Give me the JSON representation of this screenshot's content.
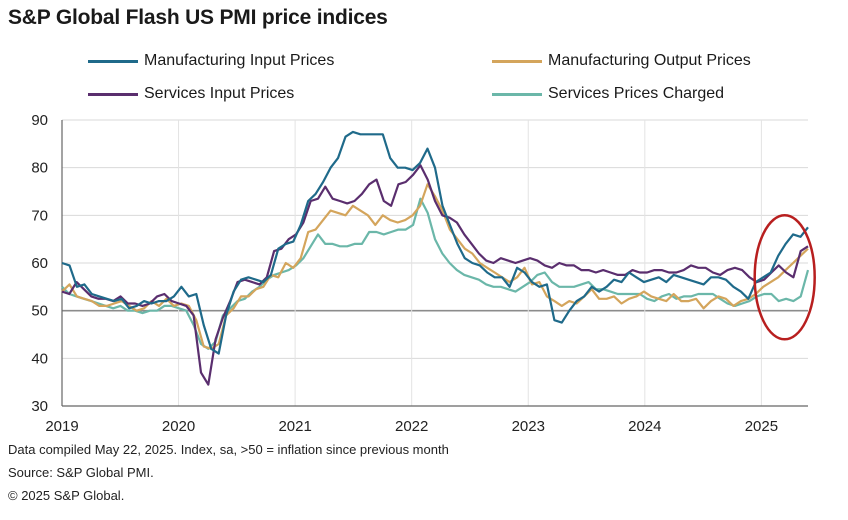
{
  "chart_data": {
    "type": "line",
    "title": "S&P Global Flash US PMI price indices",
    "ylim": [
      30,
      90
    ],
    "yticks": [
      30,
      40,
      50,
      60,
      70,
      80,
      90
    ],
    "xticks": [
      "2019",
      "2020",
      "2021",
      "2022",
      "2023",
      "2024",
      "2025"
    ],
    "x_start": 2019.0,
    "x_end": 2025.4,
    "reference_line": 50,
    "series": [
      {
        "name": "Manufacturing Input Prices",
        "color": "#1f6a8a",
        "values": [
          60,
          59.5,
          55,
          55.5,
          53.5,
          53,
          52.5,
          52,
          52.5,
          50.5,
          51,
          52,
          51.5,
          52,
          52,
          53,
          55,
          53,
          53.5,
          47,
          42,
          41,
          49,
          54,
          56.5,
          57,
          56.5,
          56,
          57.5,
          63,
          64,
          64.5,
          68,
          73,
          74.5,
          77,
          80,
          82,
          86.5,
          87.5,
          87,
          87,
          87,
          87,
          82,
          80,
          80,
          79.5,
          81,
          84,
          80,
          72,
          68,
          64,
          61,
          60,
          59.5,
          58,
          57,
          57,
          55,
          59,
          58,
          56,
          55,
          55.5,
          48,
          47.5,
          50,
          52,
          53,
          55,
          54,
          55,
          56.5,
          56,
          58,
          57,
          56,
          56.5,
          57,
          56,
          57.5,
          57,
          56.5,
          56,
          55.5,
          57,
          57,
          56.5,
          55,
          54,
          52.5,
          56,
          57,
          58,
          61.5,
          64,
          66,
          65.5,
          67.5
        ]
      },
      {
        "name": "Manufacturing Output Prices",
        "color": "#d4a55c",
        "values": [
          54,
          55.5,
          53,
          52.5,
          52,
          51,
          51,
          51.5,
          52,
          51,
          50,
          50.5,
          52,
          51,
          52.5,
          51,
          51.5,
          51,
          48,
          42.5,
          42,
          43,
          49,
          50.5,
          53,
          53,
          54.5,
          55,
          57.5,
          57,
          60,
          59,
          61,
          66.5,
          67,
          69,
          71,
          70.5,
          70,
          72,
          71,
          70,
          68,
          70,
          69,
          68.5,
          69,
          70,
          72,
          76.5,
          74,
          71,
          67,
          65,
          63,
          62,
          60,
          59,
          58,
          57,
          56,
          57,
          59,
          55.5,
          56,
          53,
          52,
          51,
          52,
          51.5,
          53,
          54.5,
          52.5,
          52.5,
          53,
          51.5,
          52.5,
          53,
          54,
          53,
          52.5,
          52,
          53.5,
          52,
          52,
          52.5,
          50.5,
          52,
          53,
          52.5,
          51,
          52,
          52.5,
          53.5,
          55,
          56,
          57,
          58.5,
          60,
          61.5,
          63
        ]
      },
      {
        "name": "Services Input Prices",
        "color": "#5a2e6e",
        "values": [
          54,
          53.5,
          56,
          54.5,
          53,
          52.5,
          52.5,
          52,
          53,
          51.5,
          51.5,
          51,
          51.5,
          53,
          53.5,
          52,
          51.5,
          51,
          49,
          37,
          34.5,
          44,
          48.5,
          52,
          56,
          56.5,
          56,
          55.5,
          57,
          62.5,
          63,
          65,
          66,
          68.5,
          73,
          73.5,
          76,
          73.5,
          73,
          72.5,
          73,
          74.5,
          76.5,
          77.5,
          73,
          72,
          76.5,
          77,
          78.5,
          80.5,
          77.5,
          73,
          70,
          69.5,
          68.5,
          66,
          64,
          62,
          60.5,
          60,
          61,
          60.5,
          60,
          60.5,
          61,
          60.5,
          59.5,
          59,
          60,
          59.5,
          59.5,
          58.5,
          58.5,
          58,
          58.5,
          58,
          57.5,
          57.5,
          58.5,
          58,
          58,
          58.5,
          58.5,
          58,
          58,
          58.5,
          59.5,
          59,
          59,
          58,
          57.5,
          58.5,
          59,
          58.5,
          57,
          56,
          56.5,
          58,
          59.5,
          58,
          57,
          62.5,
          63.5
        ]
      },
      {
        "name": "Services Prices Charged",
        "color": "#6bb7a9",
        "values": [
          55,
          53.5,
          53,
          52.5,
          52,
          51.5,
          51,
          50.5,
          51,
          50,
          50,
          49.5,
          50,
          50,
          51,
          51,
          50.5,
          50,
          47,
          43,
          42,
          43.5,
          49,
          50.5,
          52,
          52.5,
          54,
          55,
          56.5,
          57.5,
          58,
          58.5,
          59.5,
          61,
          63.5,
          66,
          64,
          64,
          63.5,
          63.5,
          64,
          64,
          66.5,
          66.5,
          66,
          66.5,
          67,
          67,
          68,
          73.5,
          70.5,
          65,
          62,
          60,
          58.5,
          57.5,
          57,
          56.5,
          55.5,
          55,
          55,
          54.5,
          54,
          55,
          56,
          57.5,
          58,
          56,
          55,
          55,
          55,
          55.5,
          56,
          54.5,
          54.5,
          54,
          53.5,
          53.5,
          53.5,
          53.5,
          52.5,
          52,
          53,
          53.5,
          52.5,
          53,
          53,
          53.5,
          53.5,
          53.5,
          52.5,
          51.5,
          51,
          51.5,
          52,
          53,
          53.5,
          53.5,
          52,
          52.5,
          52,
          53,
          58.5
        ]
      }
    ],
    "annotations": [
      {
        "type": "ellipse",
        "color": "#b81f1f",
        "note": "highlight recent 2025 rise"
      }
    ]
  },
  "footnotes": {
    "line1": "Data compiled May 22, 2025. Index, sa, >50 = inflation since previous month",
    "line2": "Source: S&P Global PMI.",
    "line3": "© 2025 S&P Global."
  }
}
